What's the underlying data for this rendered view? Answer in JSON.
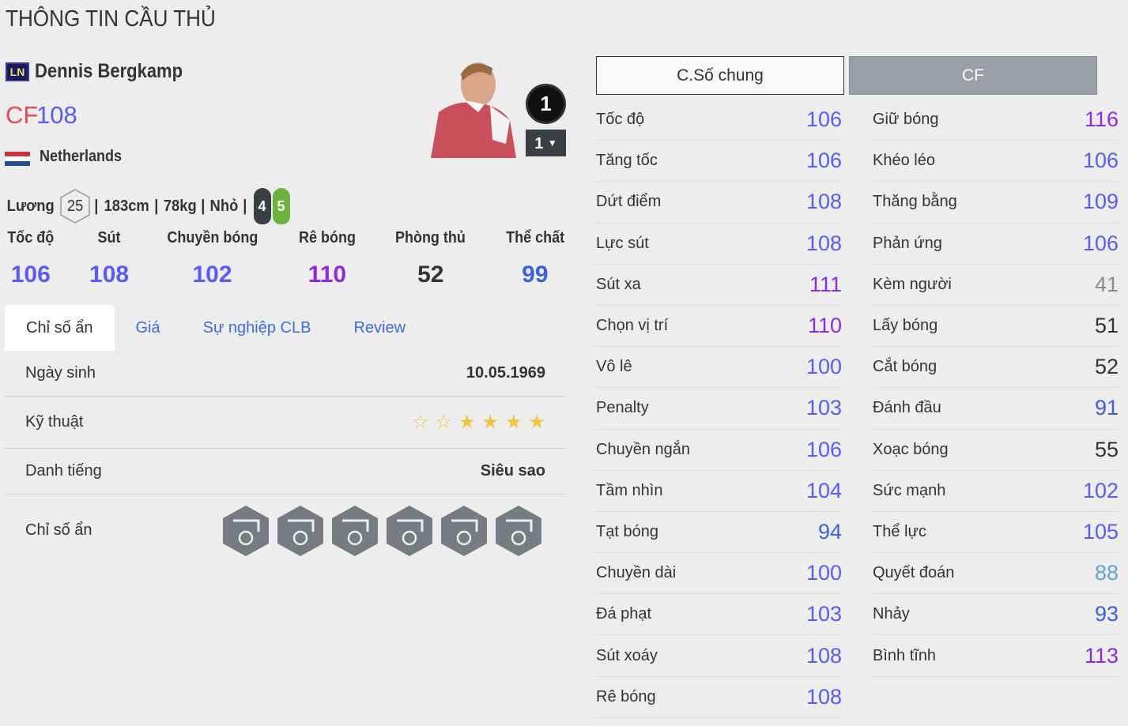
{
  "page_title": "THÔNG TIN CẦU THỦ",
  "player": {
    "season_badge": "LN",
    "name": "Dennis Bergkamp",
    "position": "CF",
    "overall": "108",
    "nation": "Netherlands",
    "salary_label": "Lương",
    "salary": "25",
    "height": "183cm",
    "weight": "78kg",
    "body": "Nhỏ",
    "left_foot": "4",
    "right_foot": "5",
    "rank": "1",
    "level": "1"
  },
  "categories": [
    {
      "label": "Tốc độ",
      "value": "106"
    },
    {
      "label": "Sút",
      "value": "108"
    },
    {
      "label": "Chuyền bóng",
      "value": "102"
    },
    {
      "label": "Rê bóng",
      "value": "110"
    },
    {
      "label": "Phòng thủ",
      "value": "52"
    },
    {
      "label": "Thể chất",
      "value": "99"
    }
  ],
  "tabs": [
    {
      "label": "Chỉ số ẩn"
    },
    {
      "label": "Giá"
    },
    {
      "label": "Sự nghiệp CLB"
    },
    {
      "label": "Review"
    }
  ],
  "info": {
    "birth_label": "Ngày sinh",
    "birth": "10.05.1969",
    "skill_label": "Kỹ thuật",
    "skill_stars": 4,
    "skill_max": 6,
    "fame_label": "Danh tiếng",
    "fame": "Siêu sao",
    "hidden_label": "Chỉ số ẩn",
    "hidden_icons": [
      "long-shot-icon",
      "flair-icon",
      "power-header-icon",
      "chip-shot-icon",
      "finesse-shot-icon",
      "playmaker-icon"
    ]
  },
  "buttons": {
    "general": "C.Số chung",
    "position": "CF"
  },
  "stats_left": [
    {
      "label": "Tốc độ",
      "value": 106
    },
    {
      "label": "Tăng tốc",
      "value": 106
    },
    {
      "label": "Dứt điểm",
      "value": 108
    },
    {
      "label": "Lực sút",
      "value": 108
    },
    {
      "label": "Sút xa",
      "value": 111
    },
    {
      "label": "Chọn vị trí",
      "value": 110
    },
    {
      "label": "Vô lê",
      "value": 100
    },
    {
      "label": "Penalty",
      "value": 103
    },
    {
      "label": "Chuyền ngắn",
      "value": 106
    },
    {
      "label": "Tầm nhìn",
      "value": 104
    },
    {
      "label": "Tạt bóng",
      "value": 94
    },
    {
      "label": "Chuyền dài",
      "value": 100
    },
    {
      "label": "Đá phạt",
      "value": 103
    },
    {
      "label": "Sút xoáy",
      "value": 108
    },
    {
      "label": "Rê bóng",
      "value": 108
    }
  ],
  "stats_right": [
    {
      "label": "Giữ bóng",
      "value": 116
    },
    {
      "label": "Khéo léo",
      "value": 106
    },
    {
      "label": "Thăng bằng",
      "value": 109
    },
    {
      "label": "Phản ứng",
      "value": 106
    },
    {
      "label": "Kèm người",
      "value": 41
    },
    {
      "label": "Lấy bóng",
      "value": 51
    },
    {
      "label": "Cắt bóng",
      "value": 52
    },
    {
      "label": "Đánh đầu",
      "value": 91
    },
    {
      "label": "Xoạc bóng",
      "value": 55
    },
    {
      "label": "Sức mạnh",
      "value": 102
    },
    {
      "label": "Thể lực",
      "value": 105
    },
    {
      "label": "Quyết đoán",
      "value": 88
    },
    {
      "label": "Nhảy",
      "value": 93
    },
    {
      "label": "Bình tĩnh",
      "value": 113
    }
  ],
  "colors": {
    "tier110": "#8a2be2",
    "tier100": "#5a5af5",
    "tier90": "#3a62d8",
    "tier80": "#5ba3d8",
    "tier50": "#333333",
    "low": "#8a8a8a",
    "position": "#e24a5a",
    "star": "#f5c342",
    "icon_hex": "#787b84"
  }
}
